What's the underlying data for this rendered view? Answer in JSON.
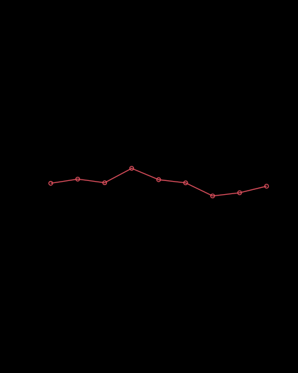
{
  "chart_data": {
    "type": "line",
    "x": [
      1,
      2,
      3,
      4,
      5,
      6,
      7,
      8,
      9
    ],
    "series": [
      {
        "values": [
          0.47,
          0.76,
          0.51,
          1.5,
          0.72,
          0.5,
          -0.4,
          -0.18,
          0.27
        ],
        "color": "#e0505e"
      }
    ],
    "ylim": [
      -9.5,
      10
    ],
    "grid": false,
    "legend": "none",
    "marker": "hollow-circle"
  },
  "colors": {
    "background": "#000000",
    "series_line": "#e0505e"
  }
}
